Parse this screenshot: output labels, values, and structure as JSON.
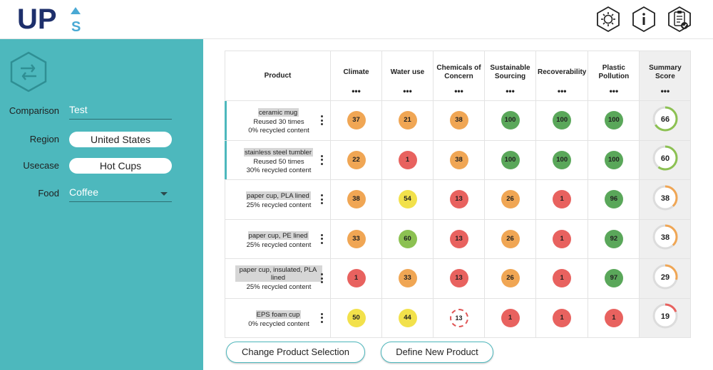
{
  "app": {
    "logo_text": "UP",
    "logo_sub": "S"
  },
  "header_icons": [
    {
      "name": "settings-gear-icon"
    },
    {
      "name": "info-icon"
    },
    {
      "name": "clipboard-check-icon"
    }
  ],
  "sidebar": {
    "icon": "compare-arrows-icon",
    "fields": {
      "comparison": {
        "label": "Comparison",
        "value": "Test"
      },
      "region": {
        "label": "Region",
        "value": "United States"
      },
      "usecase": {
        "label": "Usecase",
        "value": "Hot Cups"
      },
      "food": {
        "label": "Food",
        "value": "Coffee"
      }
    }
  },
  "table": {
    "columns": [
      {
        "label": "Product",
        "dots": ""
      },
      {
        "label": "Climate",
        "dots": "•••"
      },
      {
        "label": "Water use",
        "dots": "•••"
      },
      {
        "label": "Chemicals of Concern",
        "dots": "•••"
      },
      {
        "label": "Sustainable Sourcing",
        "dots": "•••"
      },
      {
        "label": "Recoverability",
        "dots": "•••"
      },
      {
        "label": "Plastic Pollution",
        "dots": "•••"
      },
      {
        "label": "Summary Score",
        "dots": "•••"
      }
    ],
    "rows": [
      {
        "name": "ceramic mug",
        "details": [
          "Reused 30 times",
          "0% recycled content"
        ],
        "selected": true,
        "scores": [
          37,
          21,
          38,
          100,
          100,
          100
        ],
        "summary": 66
      },
      {
        "name": "stainless steel tumbler",
        "details": [
          "Reused 50 times",
          "30% recycled content"
        ],
        "selected": true,
        "scores": [
          22,
          1,
          38,
          100,
          100,
          100
        ],
        "summary": 60
      },
      {
        "name": "paper cup, PLA lined",
        "details": [
          "25% recycled content"
        ],
        "selected": false,
        "scores": [
          38,
          54,
          13,
          26,
          1,
          96
        ],
        "summary": 38
      },
      {
        "name": "paper cup, PE lined",
        "details": [
          "25% recycled content"
        ],
        "selected": false,
        "scores": [
          33,
          60,
          13,
          26,
          1,
          92
        ],
        "summary": 38
      },
      {
        "name": "paper cup, insulated, PLA lined",
        "details": [
          "25% recycled content"
        ],
        "selected": false,
        "scores": [
          1,
          33,
          13,
          26,
          1,
          97
        ],
        "summary": 29
      },
      {
        "name": "EPS foam cup",
        "details": [
          "0% recycled content"
        ],
        "selected": false,
        "scores": [
          50,
          44,
          13,
          1,
          1,
          1
        ],
        "summary": 19,
        "dashed_index": 2
      }
    ]
  },
  "buttons": {
    "change_selection": "Change Product Selection",
    "define_new": "Define New Product"
  },
  "colors": {
    "teal": "#4db8bd",
    "green": "#5aa75a",
    "light_green": "#8cc152",
    "yellow": "#f2e14b",
    "orange": "#f0a654",
    "red": "#e8625f",
    "ring_track": "#dcdcdc"
  }
}
